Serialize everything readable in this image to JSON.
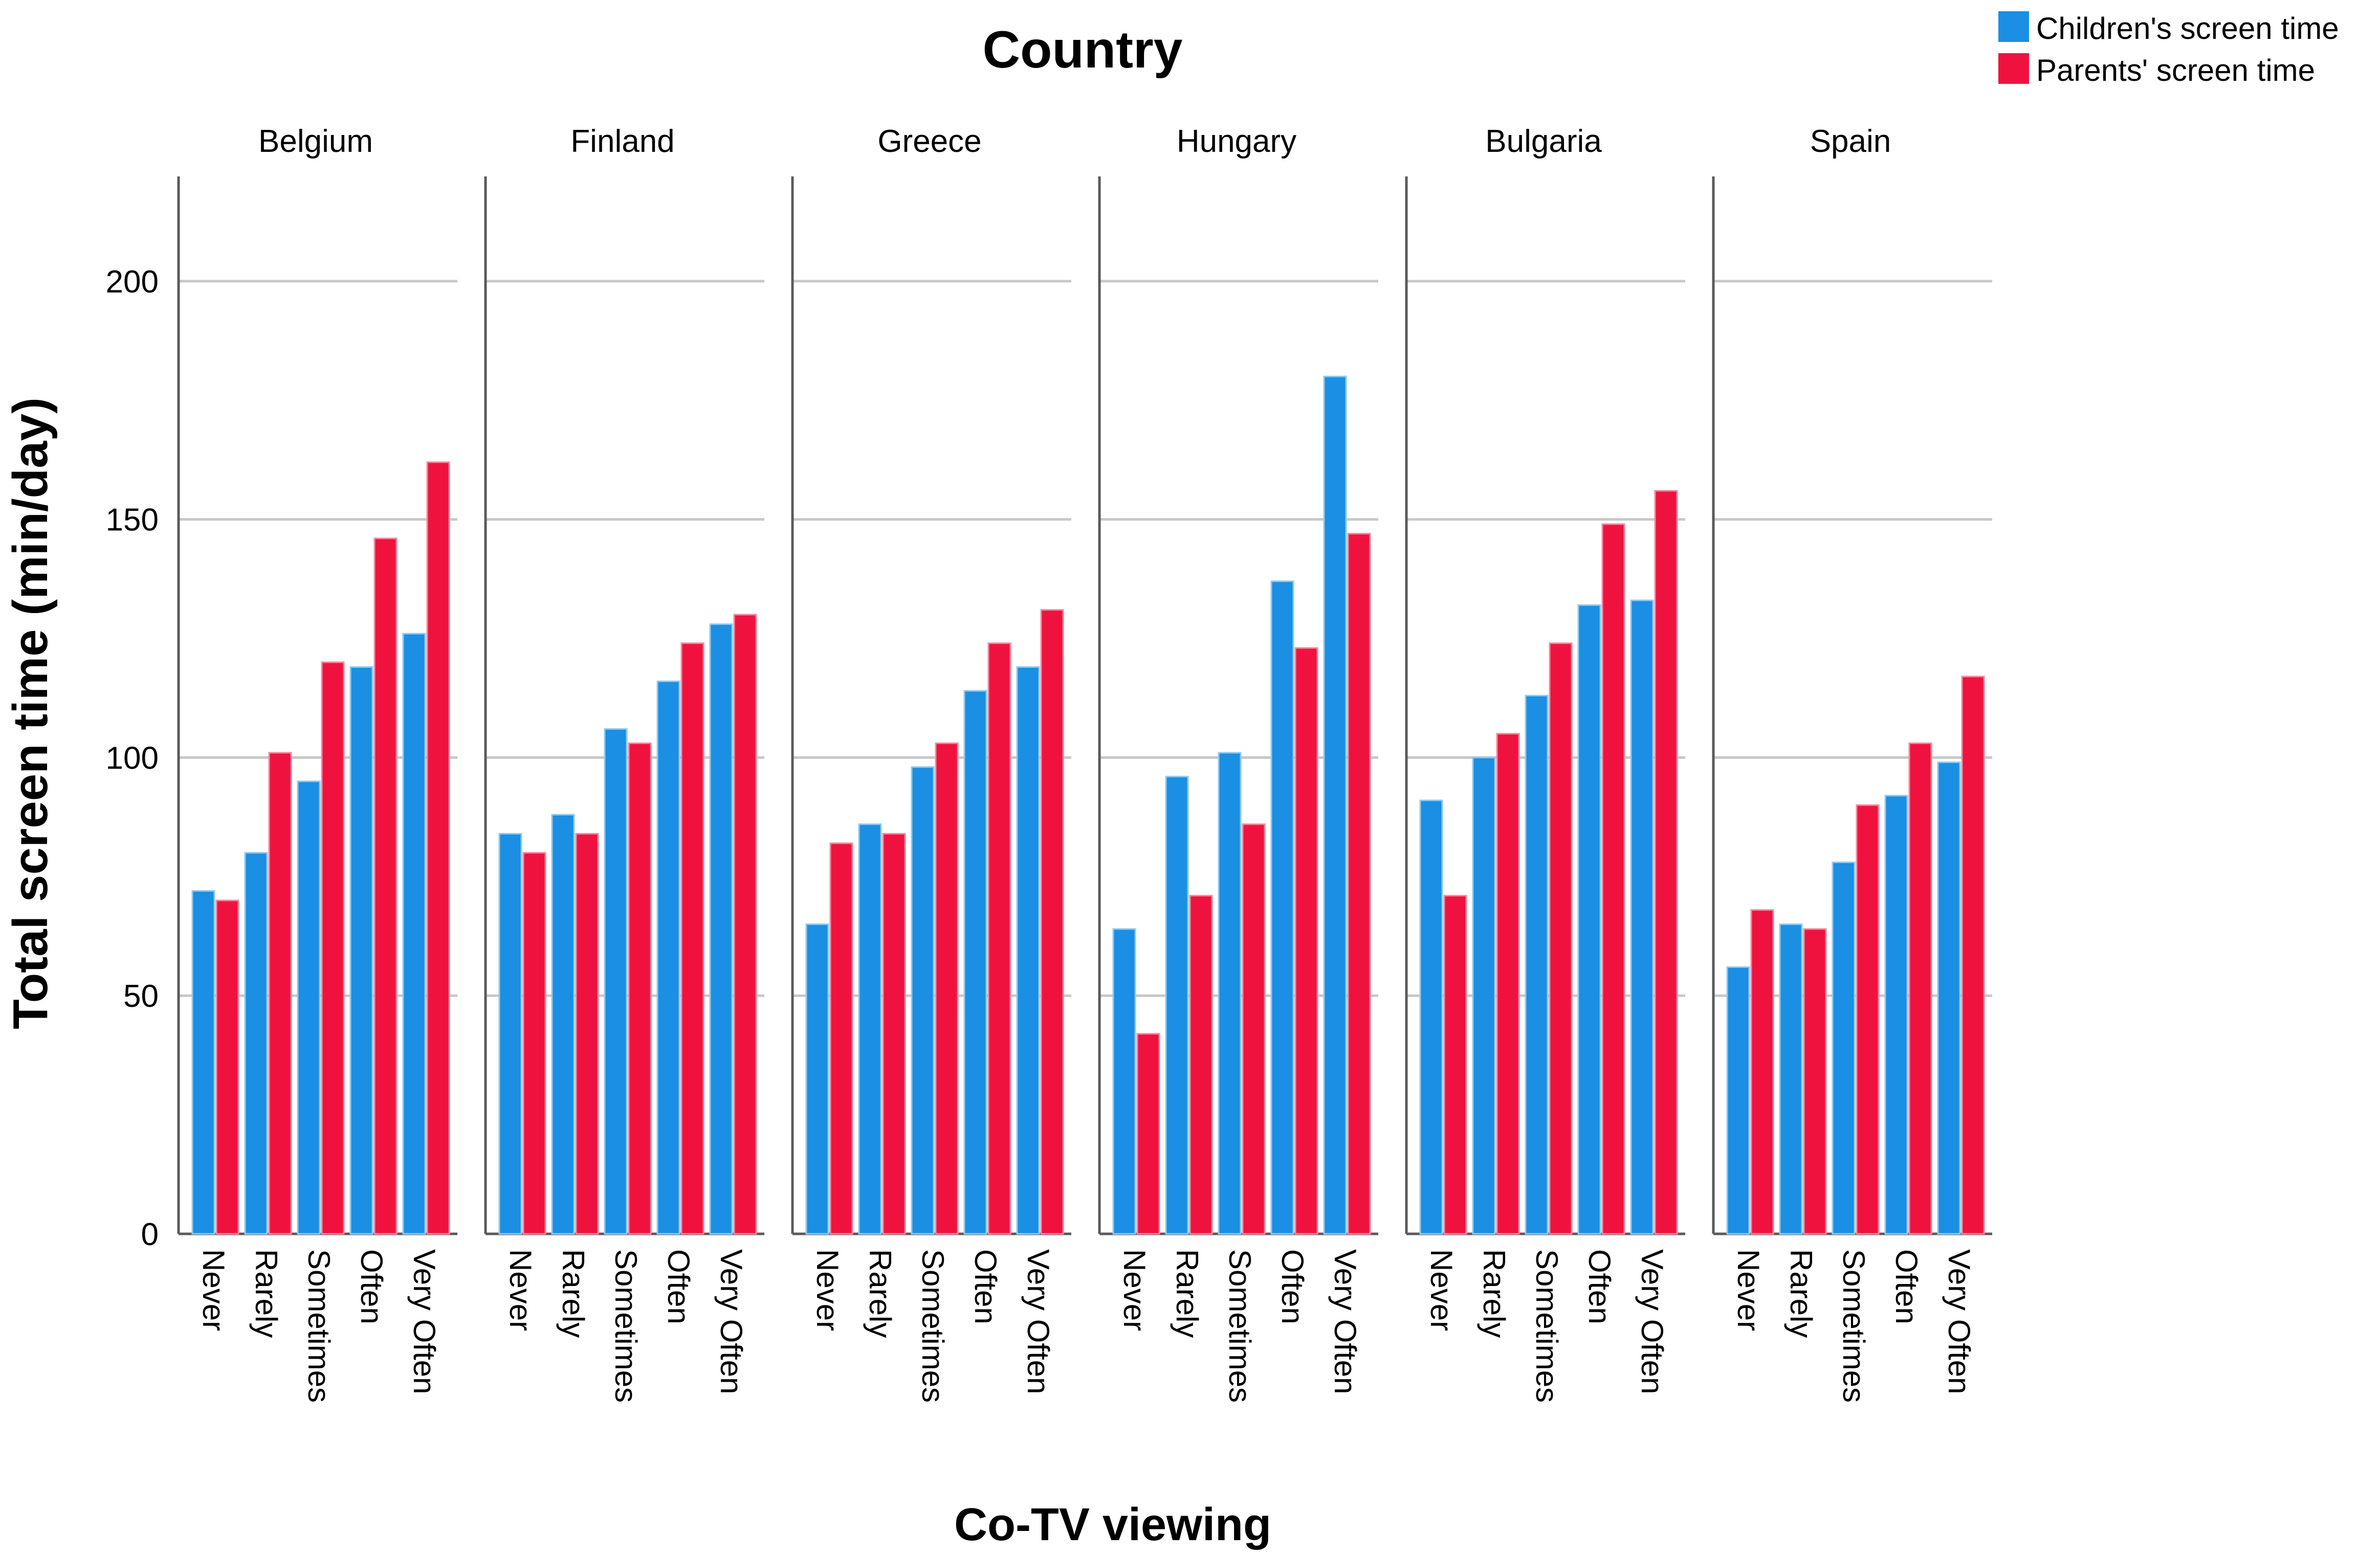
{
  "chart_data": {
    "type": "bar",
    "title": "Country",
    "xlabel": "Co-TV viewing",
    "ylabel": "Total screen time (min/day)",
    "ylim": [
      0,
      222
    ],
    "yticks": [
      0,
      50,
      100,
      150,
      200
    ],
    "grid": true,
    "legend_position": "top-right",
    "categories": [
      "Never",
      "Rarely",
      "Sometimes",
      "Often",
      "Very Often"
    ],
    "series_meta": [
      {
        "name": "Children's screen time",
        "color": "#1a8fe3"
      },
      {
        "name": "Parents' screen time",
        "color": "#f0123e"
      }
    ],
    "facets": [
      {
        "label": "Belgium",
        "children": [
          72,
          80,
          95,
          119,
          126
        ],
        "parents": [
          70,
          101,
          120,
          146,
          162
        ]
      },
      {
        "label": "Finland",
        "children": [
          84,
          88,
          106,
          116,
          128
        ],
        "parents": [
          80,
          84,
          103,
          124,
          130
        ]
      },
      {
        "label": "Greece",
        "children": [
          65,
          86,
          98,
          114,
          119
        ],
        "parents": [
          82,
          84,
          103,
          124,
          131
        ]
      },
      {
        "label": "Hungary",
        "children": [
          64,
          96,
          101,
          137,
          180
        ],
        "parents": [
          42,
          71,
          86,
          123,
          147
        ]
      },
      {
        "label": "Bulgaria",
        "children": [
          91,
          100,
          113,
          132,
          133
        ],
        "parents": [
          71,
          105,
          124,
          149,
          156
        ]
      },
      {
        "label": "Spain",
        "children": [
          56,
          65,
          78,
          92,
          99
        ],
        "parents": [
          68,
          64,
          90,
          103,
          117
        ]
      }
    ]
  }
}
